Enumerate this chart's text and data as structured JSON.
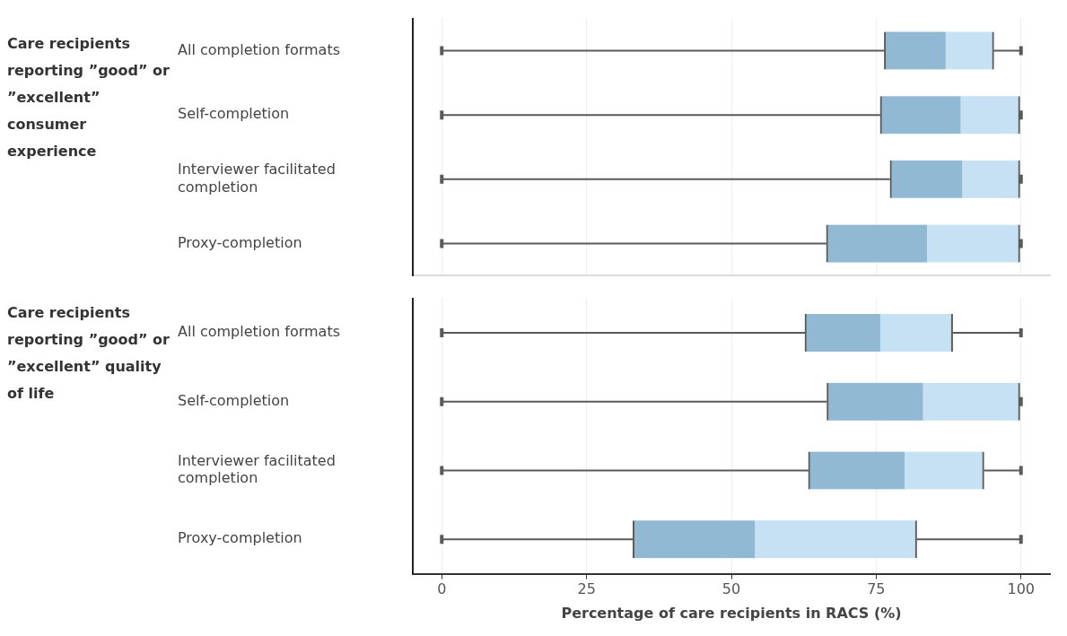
{
  "chart_data": [
    {
      "type": "box",
      "orientation": "horizontal",
      "ylabel": "Care recipients reporting ”good” or ”excellent” consumer experience",
      "categories": [
        "All completion formats",
        "Self-completion",
        "Interviewer facilitated completion",
        "Proxy-completion"
      ],
      "series": [
        {
          "color": "#92b9d3",
          "boxes": [
            {
              "low": 0,
              "q1": 76.4,
              "median": 87.0,
              "q3": 95.3,
              "high": 100
            },
            {
              "low": 0,
              "q1": 75.7,
              "median": 89.6,
              "q3": 99.8,
              "high": 100
            },
            {
              "low": 0,
              "q1": 77.4,
              "median": 89.9,
              "q3": 99.8,
              "high": 100
            },
            {
              "low": 0,
              "q1": 66.4,
              "median": 83.8,
              "q3": 99.8,
              "high": 100
            }
          ]
        }
      ],
      "colors": [
        "#c5e1f3",
        "#c5e1f3",
        "#c5e1f3",
        "#c5e1f3"
      ],
      "xlim": [
        -5,
        105
      ],
      "xticks": [
        0,
        25,
        50,
        75,
        100
      ],
      "grid": "x",
      "tick_labels": "y"
    },
    {
      "type": "box",
      "orientation": "horizontal",
      "ylabel": "Care recipients reporting ”good” or ”excellent” quality of life",
      "xlabel": "Percentage of care recipients in RACS (%)",
      "categories": [
        "All completion formats",
        "Self-completion",
        "Interviewer facilitated completion",
        "Proxy-completion"
      ],
      "series": [
        {
          "color": "#92b9d3",
          "boxes": [
            {
              "low": 0,
              "q1": 62.7,
              "median": 75.7,
              "q3": 88.2,
              "high": 100
            },
            {
              "low": 0,
              "q1": 66.5,
              "median": 83.1,
              "q3": 99.8,
              "high": 100
            },
            {
              "low": 0,
              "q1": 63.3,
              "median": 79.9,
              "q3": 93.6,
              "high": 100
            },
            {
              "low": 0,
              "q1": 33.0,
              "median": 54.1,
              "q3": 82.0,
              "high": 100
            }
          ]
        }
      ],
      "colors": [
        "#c5e1f3",
        "#c5e1f3",
        "#c5e1f3",
        "#c5e1f3"
      ],
      "xlim": [
        -5,
        105
      ],
      "xticks": [
        0,
        25,
        50,
        75,
        100
      ],
      "grid": "x"
    }
  ]
}
